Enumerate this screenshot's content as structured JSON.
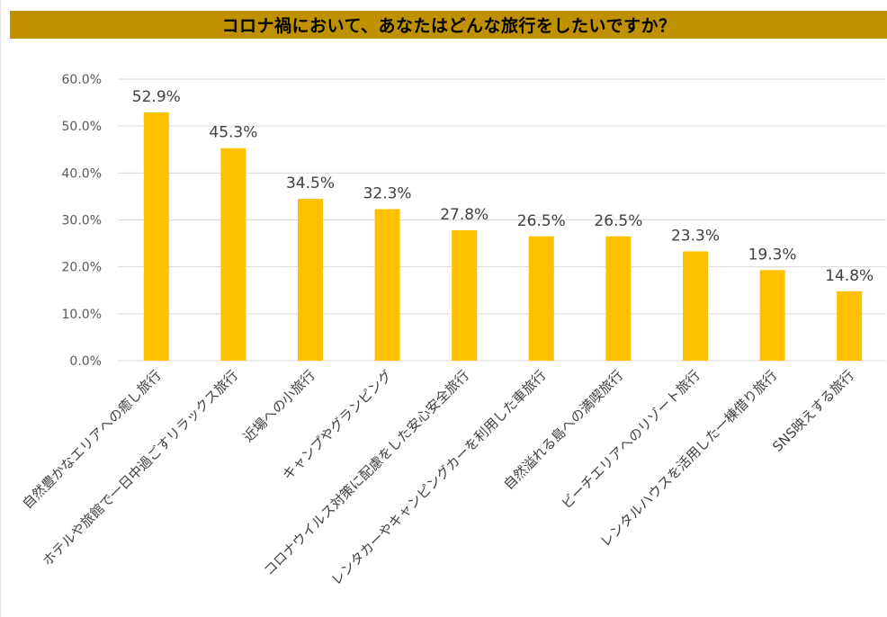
{
  "colors": {
    "title_bar": "#bf9000",
    "bar": "#ffc000",
    "grid": "#d9d9d9",
    "text": "#404040"
  },
  "chart_data": {
    "type": "bar",
    "title": "コロナ禍において、あなたはどんな旅行をしたいですか？",
    "categories": [
      "自然豊かなエリアへの癒し旅行",
      "ホテルや旅館で一日中過ごすリラックス旅行",
      "近場への小旅行",
      "キャンプやグランピング",
      "コロナウイルス対策に配慮をした安心安全旅行",
      "レンタカーやキャンピングカーを利用した車旅行",
      "自然溢れる島への満喫旅行",
      "ビーチエリアへのリゾート旅行",
      "レンタルハウスを活用した一棟借り旅行",
      "SNS映えする旅行"
    ],
    "values": [
      52.9,
      45.3,
      34.5,
      32.3,
      27.8,
      26.5,
      26.5,
      23.3,
      19.3,
      14.8
    ],
    "value_labels": [
      "52.9%",
      "45.3%",
      "34.5%",
      "32.3%",
      "27.8%",
      "26.5%",
      "26.5%",
      "23.3%",
      "19.3%",
      "14.8%"
    ],
    "y_ticks": [
      0,
      10,
      20,
      30,
      40,
      50,
      60
    ],
    "y_tick_labels": [
      "0.0%",
      "10.0%",
      "20.0%",
      "30.0%",
      "40.0%",
      "50.0%",
      "60.0%"
    ],
    "ylim": [
      0,
      60
    ],
    "grid": true,
    "legend": "none"
  }
}
